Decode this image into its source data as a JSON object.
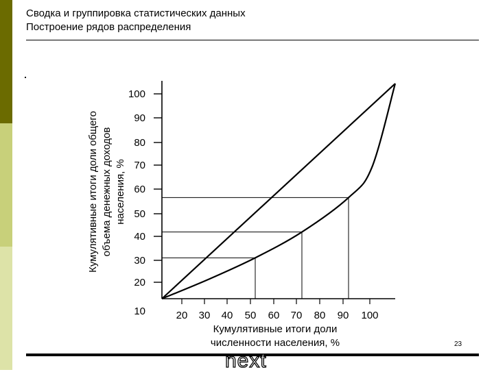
{
  "slide": {
    "title_line1": "Сводка и группировка статистических данных",
    "title_line2": "Построение рядов распределения",
    "page_number": "23",
    "next_label": "next"
  },
  "colors": {
    "sidebar_dark": "#6b6b00",
    "sidebar_mid": "#c8d07a",
    "sidebar_light": "#dde3a8"
  },
  "chart_data": {
    "type": "line",
    "xlabel": "Кумулятивные итоги доли численности населения, %",
    "xlabel_lines": [
      "Кумулятивные итоги доли",
      "численности населения, %"
    ],
    "ylabel_lines": [
      "Кумулятивные итоги доли общего",
      "объема денежных доходов",
      "населения, %"
    ],
    "x_ticks": [
      "20",
      "30",
      "40",
      "50",
      "60",
      "70",
      "80",
      "90",
      "100"
    ],
    "y_ticks": [
      "100",
      "90",
      "80",
      "70",
      "60",
      "50",
      "40",
      "30",
      "20",
      "10"
    ],
    "xlim": [
      0,
      100
    ],
    "ylim": [
      0,
      100
    ],
    "series": [
      {
        "x": [
          0,
          100
        ],
        "y": [
          0,
          100
        ]
      },
      {
        "x": [
          0,
          20,
          40,
          60,
          80,
          90,
          100
        ],
        "y": [
          0,
          9,
          19,
          31,
          47,
          61,
          100
        ]
      }
    ],
    "reference_lines": [
      {
        "x": 40,
        "y": 19
      },
      {
        "x": 60,
        "y": 31
      },
      {
        "x": 80,
        "y": 47
      }
    ]
  }
}
